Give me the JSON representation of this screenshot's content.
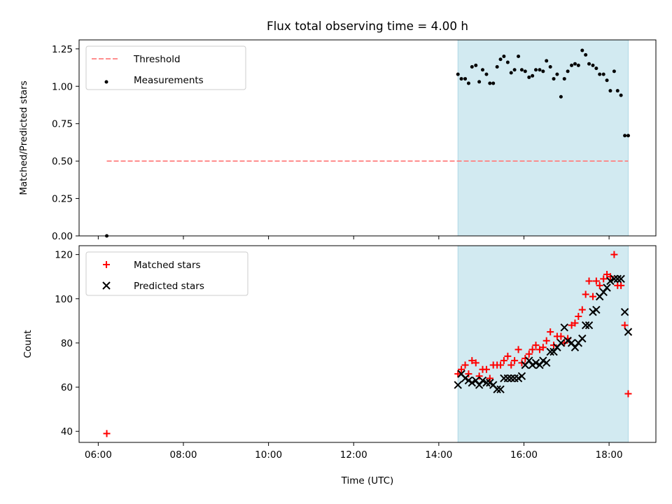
{
  "title": "Flux total observing time = 4.00 h",
  "colors": {
    "shade": "#add8e6",
    "threshold": "#ff7f7f",
    "matched": "#ff0000",
    "predicted": "#000000"
  },
  "chart_data": [
    {
      "type": "scatter",
      "ylabel": "Matched/Predicted stars",
      "xlim_hours": [
        5.55,
        19.1
      ],
      "ylim": [
        0,
        1.31
      ],
      "yticks": [
        "0.00",
        "0.25",
        "0.50",
        "0.75",
        "1.00",
        "1.25"
      ],
      "shaded_span_hours": [
        14.45,
        18.45
      ],
      "legend": {
        "placement": "upper-left",
        "entries": [
          "Threshold",
          "Measurements"
        ]
      },
      "threshold": {
        "name": "Threshold",
        "value": 0.5,
        "x_range_hours": [
          6.2,
          18.45
        ]
      },
      "series": [
        {
          "name": "Measurements",
          "x_hours": [
            6.2,
            14.45,
            14.53,
            14.62,
            14.7,
            14.78,
            14.87,
            14.95,
            15.03,
            15.12,
            15.2,
            15.28,
            15.37,
            15.45,
            15.53,
            15.62,
            15.7,
            15.78,
            15.87,
            15.95,
            16.03,
            16.12,
            16.2,
            16.28,
            16.37,
            16.45,
            16.53,
            16.62,
            16.7,
            16.78,
            16.87,
            16.95,
            17.03,
            17.12,
            17.2,
            17.28,
            17.37,
            17.45,
            17.53,
            17.62,
            17.7,
            17.78,
            17.87,
            17.95,
            18.03,
            18.12,
            18.2,
            18.28,
            18.37,
            18.45
          ],
          "values": [
            0.0,
            1.08,
            1.05,
            1.05,
            1.02,
            1.13,
            1.14,
            1.03,
            1.11,
            1.08,
            1.02,
            1.02,
            1.13,
            1.18,
            1.2,
            1.16,
            1.09,
            1.11,
            1.2,
            1.11,
            1.1,
            1.06,
            1.07,
            1.11,
            1.11,
            1.1,
            1.17,
            1.13,
            1.05,
            1.08,
            0.93,
            1.05,
            1.1,
            1.14,
            1.15,
            1.14,
            1.24,
            1.21,
            1.15,
            1.14,
            1.12,
            1.08,
            1.08,
            1.04,
            0.97,
            1.1,
            0.97,
            0.94,
            0.67,
            0.67
          ]
        }
      ]
    },
    {
      "type": "scatter",
      "xlabel": "Time (UTC)",
      "ylabel": "Count",
      "xlim_hours": [
        5.55,
        19.1
      ],
      "ylim": [
        35,
        124
      ],
      "yticks": [
        "40",
        "60",
        "80",
        "100",
        "120"
      ],
      "xticks": [
        "06:00",
        "08:00",
        "10:00",
        "12:00",
        "14:00",
        "16:00",
        "18:00"
      ],
      "shaded_span_hours": [
        14.45,
        18.45
      ],
      "legend": {
        "placement": "upper-left",
        "entries": [
          "Matched stars",
          "Predicted stars"
        ]
      },
      "series": [
        {
          "name": "Matched stars",
          "marker": "plus",
          "x_hours": [
            6.2,
            14.45,
            14.53,
            14.62,
            14.7,
            14.78,
            14.87,
            14.95,
            15.03,
            15.12,
            15.2,
            15.28,
            15.37,
            15.45,
            15.53,
            15.62,
            15.7,
            15.78,
            15.87,
            15.95,
            16.03,
            16.12,
            16.2,
            16.28,
            16.37,
            16.45,
            16.53,
            16.62,
            16.7,
            16.78,
            16.87,
            16.95,
            17.03,
            17.12,
            17.2,
            17.28,
            17.37,
            17.45,
            17.53,
            17.62,
            17.7,
            17.78,
            17.87,
            17.95,
            18.03,
            18.12,
            18.2,
            18.28,
            18.37,
            18.45
          ],
          "values": [
            39,
            66,
            68,
            70,
            66,
            72,
            71,
            65,
            68,
            68,
            64,
            70,
            70,
            70,
            72,
            74,
            70,
            72,
            77,
            71,
            73,
            75,
            77,
            79,
            77,
            78,
            81,
            85,
            79,
            83,
            83,
            80,
            82,
            88,
            89,
            92,
            95,
            102,
            108,
            101,
            108,
            106,
            109,
            111,
            110,
            120,
            106,
            106,
            88,
            57
          ]
        },
        {
          "name": "Predicted stars",
          "marker": "x",
          "x_hours": [
            14.45,
            14.53,
            14.62,
            14.7,
            14.78,
            14.87,
            14.95,
            15.03,
            15.12,
            15.2,
            15.28,
            15.37,
            15.45,
            15.53,
            15.62,
            15.7,
            15.78,
            15.87,
            15.95,
            16.03,
            16.12,
            16.2,
            16.28,
            16.37,
            16.45,
            16.53,
            16.62,
            16.7,
            16.78,
            16.87,
            16.95,
            17.03,
            17.12,
            17.2,
            17.28,
            17.37,
            17.45,
            17.53,
            17.62,
            17.7,
            17.78,
            17.87,
            17.95,
            18.03,
            18.12,
            18.2,
            18.28,
            18.37,
            18.45
          ],
          "values": [
            61,
            66,
            64,
            63,
            62,
            63,
            61,
            63,
            62,
            62,
            61,
            59,
            59,
            64,
            64,
            64,
            64,
            64,
            65,
            70,
            72,
            70,
            71,
            70,
            72,
            71,
            76,
            76,
            78,
            80,
            87,
            81,
            80,
            78,
            80,
            82,
            88,
            88,
            94,
            95,
            101,
            103,
            105,
            108,
            109,
            109,
            109,
            94,
            85
          ]
        }
      ]
    }
  ]
}
